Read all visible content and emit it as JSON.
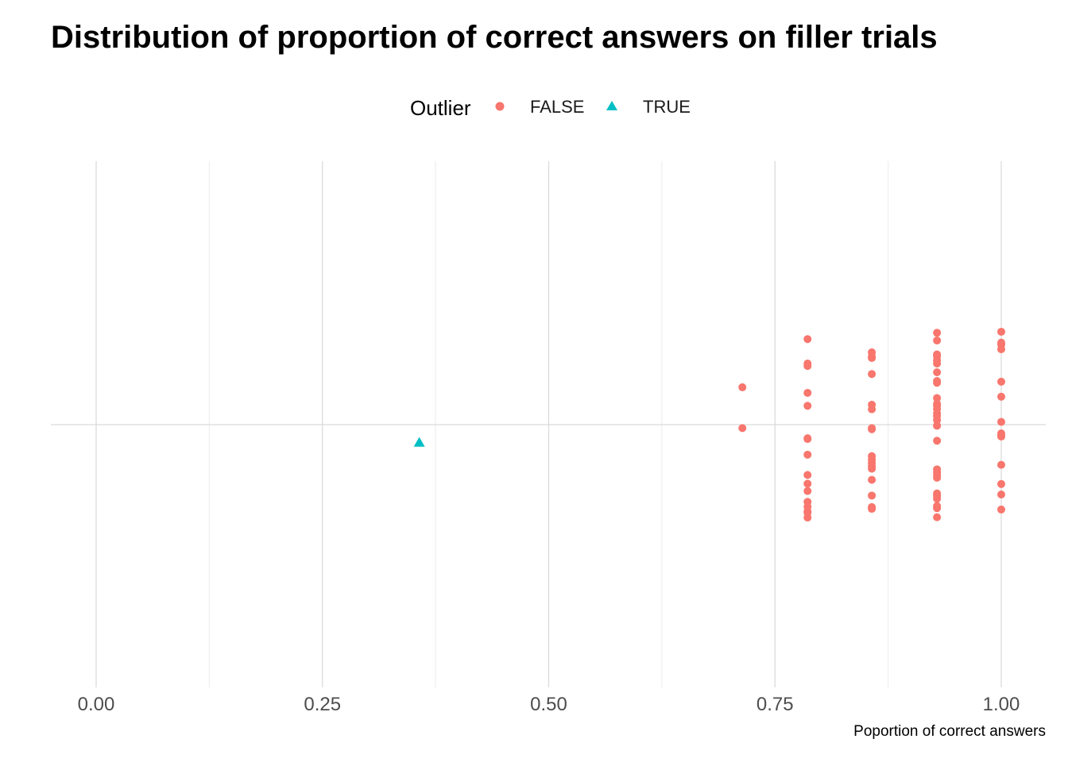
{
  "chart_data": {
    "type": "scatter",
    "title": "Distribution of proportion of correct answers on filler trials",
    "xlabel": "Poportion of correct answers",
    "ylabel": "",
    "xlim": [
      -0.05,
      1.05
    ],
    "xticks": [
      "0.00",
      "0.25",
      "0.50",
      "0.75",
      "1.00"
    ],
    "xtick_values": [
      0,
      0.25,
      0.5,
      0.75,
      1.0
    ],
    "ylim": [
      -0.4,
      0.4
    ],
    "grid": true,
    "legend": {
      "title": "Outlier",
      "position": "top",
      "entries": [
        {
          "label": "FALSE",
          "color": "#F8766D",
          "shape": "circle"
        },
        {
          "label": "TRUE",
          "color": "#00BFC4",
          "shape": "triangle"
        }
      ]
    },
    "series": [
      {
        "name": "FALSE",
        "color": "#F8766D",
        "shape": "circle",
        "points": [
          {
            "x": 0.714,
            "y": 0.107
          },
          {
            "x": 0.714,
            "y": -0.01
          },
          {
            "x": 0.786,
            "y": 0.245
          },
          {
            "x": 0.786,
            "y": 0.175
          },
          {
            "x": 0.786,
            "y": 0.168
          },
          {
            "x": 0.786,
            "y": 0.091
          },
          {
            "x": 0.786,
            "y": 0.054
          },
          {
            "x": 0.786,
            "y": -0.039
          },
          {
            "x": 0.786,
            "y": -0.041
          },
          {
            "x": 0.786,
            "y": -0.086
          },
          {
            "x": 0.786,
            "y": -0.144
          },
          {
            "x": 0.786,
            "y": -0.169
          },
          {
            "x": 0.786,
            "y": -0.19
          },
          {
            "x": 0.786,
            "y": -0.221
          },
          {
            "x": 0.786,
            "y": -0.235
          },
          {
            "x": 0.786,
            "y": -0.248
          },
          {
            "x": 0.786,
            "y": -0.252
          },
          {
            "x": 0.786,
            "y": -0.266
          },
          {
            "x": 0.857,
            "y": 0.207
          },
          {
            "x": 0.857,
            "y": 0.195
          },
          {
            "x": 0.857,
            "y": 0.191
          },
          {
            "x": 0.857,
            "y": 0.145
          },
          {
            "x": 0.857,
            "y": 0.057
          },
          {
            "x": 0.857,
            "y": 0.044
          },
          {
            "x": 0.857,
            "y": -0.01
          },
          {
            "x": 0.857,
            "y": -0.013
          },
          {
            "x": 0.857,
            "y": -0.09
          },
          {
            "x": 0.857,
            "y": -0.1
          },
          {
            "x": 0.857,
            "y": -0.11
          },
          {
            "x": 0.857,
            "y": -0.119
          },
          {
            "x": 0.857,
            "y": -0.126
          },
          {
            "x": 0.857,
            "y": -0.158
          },
          {
            "x": 0.857,
            "y": -0.203
          },
          {
            "x": 0.857,
            "y": -0.236
          },
          {
            "x": 0.857,
            "y": -0.241
          },
          {
            "x": 0.929,
            "y": 0.263
          },
          {
            "x": 0.929,
            "y": 0.241
          },
          {
            "x": 0.929,
            "y": 0.201
          },
          {
            "x": 0.929,
            "y": 0.196
          },
          {
            "x": 0.929,
            "y": 0.185
          },
          {
            "x": 0.929,
            "y": 0.175
          },
          {
            "x": 0.929,
            "y": 0.15
          },
          {
            "x": 0.929,
            "y": 0.125
          },
          {
            "x": 0.929,
            "y": 0.12
          },
          {
            "x": 0.929,
            "y": 0.076
          },
          {
            "x": 0.929,
            "y": 0.06
          },
          {
            "x": 0.929,
            "y": 0.054
          },
          {
            "x": 0.929,
            "y": 0.045
          },
          {
            "x": 0.929,
            "y": 0.032
          },
          {
            "x": 0.929,
            "y": 0.025
          },
          {
            "x": 0.929,
            "y": 0.013
          },
          {
            "x": 0.929,
            "y": -0.003
          },
          {
            "x": 0.929,
            "y": -0.046
          },
          {
            "x": 0.929,
            "y": -0.128
          },
          {
            "x": 0.929,
            "y": -0.137
          },
          {
            "x": 0.929,
            "y": -0.145
          },
          {
            "x": 0.929,
            "y": -0.152
          },
          {
            "x": 0.929,
            "y": -0.197
          },
          {
            "x": 0.929,
            "y": -0.204
          },
          {
            "x": 0.929,
            "y": -0.212
          },
          {
            "x": 0.929,
            "y": -0.233
          },
          {
            "x": 0.929,
            "y": -0.239
          },
          {
            "x": 0.929,
            "y": -0.265
          },
          {
            "x": 1.0,
            "y": 0.266
          },
          {
            "x": 1.0,
            "y": 0.235
          },
          {
            "x": 1.0,
            "y": 0.229
          },
          {
            "x": 1.0,
            "y": 0.216
          },
          {
            "x": 1.0,
            "y": 0.123
          },
          {
            "x": 1.0,
            "y": 0.08
          },
          {
            "x": 1.0,
            "y": 0.008
          },
          {
            "x": 1.0,
            "y": -0.025
          },
          {
            "x": 1.0,
            "y": -0.03
          },
          {
            "x": 1.0,
            "y": -0.034
          },
          {
            "x": 1.0,
            "y": -0.115
          },
          {
            "x": 1.0,
            "y": -0.17
          },
          {
            "x": 1.0,
            "y": -0.2
          },
          {
            "x": 1.0,
            "y": -0.243
          }
        ]
      },
      {
        "name": "TRUE",
        "color": "#00BFC4",
        "shape": "triangle",
        "points": [
          {
            "x": 0.357,
            "y": -0.051
          }
        ]
      }
    ]
  }
}
